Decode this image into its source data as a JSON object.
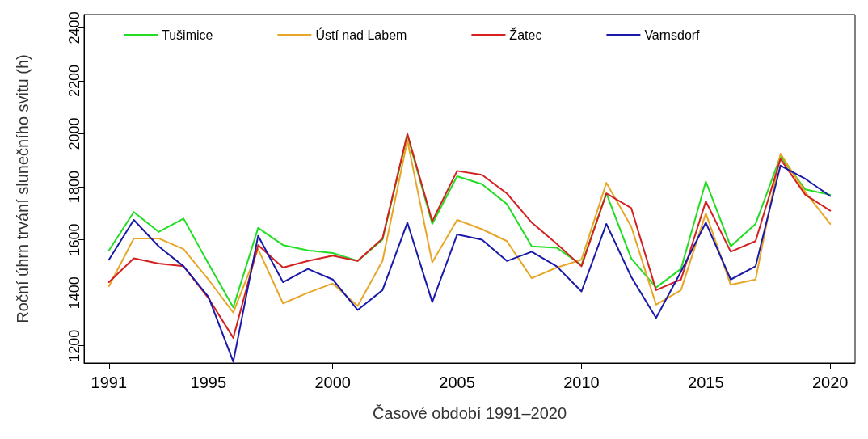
{
  "chart_data": {
    "type": "line",
    "xlabel": "Časové období 1991–2020",
    "ylabel": "Roční úhrn trvání slunečního svitu (h)",
    "x": [
      1991,
      1992,
      1993,
      1994,
      1995,
      1996,
      1997,
      1998,
      1999,
      2000,
      2001,
      2002,
      2003,
      2004,
      2005,
      2006,
      2007,
      2008,
      2009,
      2010,
      2011,
      2012,
      2013,
      2014,
      2015,
      2016,
      2017,
      2018,
      2019,
      2020
    ],
    "series": [
      {
        "name": "Tušimice",
        "color": "#22dd22",
        "values": [
          1560,
          1705,
          1630,
          1680,
          1510,
          1345,
          1645,
          1580,
          1560,
          1550,
          1520,
          1600,
          1995,
          1660,
          1840,
          1810,
          1735,
          1575,
          1570,
          1505,
          1775,
          1530,
          1420,
          1490,
          1820,
          1575,
          1660,
          1915,
          1790,
          1770
        ]
      },
      {
        "name": "Ústí nad Labem",
        "color": "#e8a628",
        "values": [
          1425,
          1605,
          1605,
          1565,
          1450,
          1325,
          1565,
          1360,
          1400,
          1435,
          1350,
          1520,
          1975,
          1515,
          1675,
          1640,
          1595,
          1455,
          1495,
          1525,
          1815,
          1650,
          1355,
          1410,
          1700,
          1430,
          1450,
          1925,
          1780,
          1660
        ]
      },
      {
        "name": "Žatec",
        "color": "#d42020",
        "values": [
          1440,
          1530,
          1510,
          1500,
          1380,
          1230,
          1580,
          1495,
          1520,
          1540,
          1520,
          1605,
          2000,
          1670,
          1860,
          1845,
          1775,
          1665,
          1585,
          1500,
          1775,
          1720,
          1410,
          1450,
          1745,
          1555,
          1595,
          1905,
          1770,
          1710
        ]
      },
      {
        "name": "Varnsdorf",
        "color": "#1a1aaa",
        "values": [
          1525,
          1675,
          1575,
          1500,
          1385,
          1140,
          1615,
          1440,
          1490,
          1450,
          1335,
          1410,
          1665,
          1365,
          1620,
          1600,
          1520,
          1555,
          1500,
          1405,
          1660,
          1460,
          1305,
          1480,
          1665,
          1450,
          1500,
          1880,
          1830,
          1765
        ]
      }
    ],
    "xlim": [
      1990,
      2021
    ],
    "xticks": [
      1991,
      1995,
      2000,
      2005,
      2010,
      2015,
      2020
    ],
    "ylim": [
      1135,
      2450
    ],
    "yticks": [
      1200,
      1400,
      1600,
      1800,
      2000,
      2200,
      2400
    ],
    "grid": false,
    "legend": "top",
    "marker": "none",
    "line_style": "solid"
  }
}
